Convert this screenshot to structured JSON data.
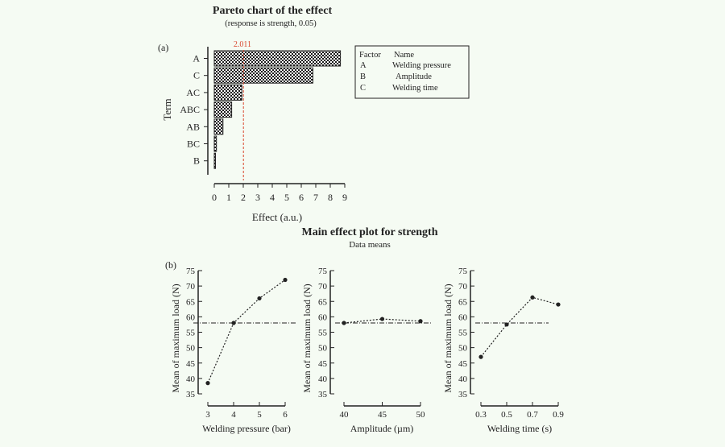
{
  "colors": {
    "background": "#f5fbf3",
    "ink": "#222222",
    "reference_line": "#d9452b",
    "hatch_dark": "#1a1a1a",
    "hatch_light": "#ffffff"
  },
  "pareto": {
    "title": "Pareto chart of the effect",
    "subtitle": "(response is strength,   0.05)",
    "panel_label": "(a)",
    "xlabel": "Effect (a.u.)",
    "ylabel": "Term",
    "reference_label": "2.011",
    "legend": {
      "header_factor": "Factor",
      "header_name": "Name",
      "rows": [
        {
          "factor": "A",
          "name": "Welding pressure"
        },
        {
          "factor": "B",
          "name": "Amplitude"
        },
        {
          "factor": "C",
          "name": "Welding time"
        }
      ]
    }
  },
  "main_effects": {
    "title": "Main effect plot for strength",
    "subtitle": "Data means",
    "panel_label": "(b)",
    "ylabel": "Mean of maximum load (N)",
    "xlabels": [
      "Welding pressure (bar)",
      "Amplitude  (µm)",
      "Welding time (s)"
    ]
  },
  "chart_data": [
    {
      "type": "bar",
      "orientation": "horizontal",
      "title": "Pareto chart of the effect",
      "subtitle": "(response is strength,   0.05)",
      "xlabel": "Effect (a.u.)",
      "ylabel": "Term",
      "categories": [
        "A",
        "C",
        "AC",
        "ABC",
        "AB",
        "BC",
        "B"
      ],
      "values": [
        8.7,
        6.8,
        1.9,
        1.2,
        0.6,
        0.15,
        0.05
      ],
      "xlim": [
        0,
        9
      ],
      "xticks": [
        0,
        1,
        2,
        3,
        4,
        5,
        6,
        7,
        8,
        9
      ],
      "reference_line": 2.011,
      "grid": false,
      "legend_position": "right"
    },
    {
      "type": "line",
      "title": "Main effect plot for strength",
      "subtitle": "Data means",
      "xlabel": "Welding pressure (bar)",
      "ylabel": "Mean of maximum load (N)",
      "x": [
        "3",
        "4",
        "5",
        "6"
      ],
      "values": [
        38.5,
        58,
        66,
        72
      ],
      "ylim": [
        35,
        75
      ],
      "yticks": [
        35,
        40,
        45,
        50,
        55,
        60,
        65,
        70,
        75
      ],
      "mean_line": 58
    },
    {
      "type": "line",
      "xlabel": "Amplitude  (µm)",
      "ylabel": "Mean of maximum load (N)",
      "x": [
        "40",
        "45",
        "50"
      ],
      "values": [
        58,
        59.3,
        58.6
      ],
      "ylim": [
        35,
        75
      ],
      "yticks": [
        35,
        40,
        45,
        50,
        55,
        60,
        65,
        70,
        75
      ],
      "mean_line": 58
    },
    {
      "type": "line",
      "xlabel": "Welding time (s)",
      "ylabel": "Mean of maximum load (N)",
      "x": [
        "0.3",
        "0.5",
        "0.7",
        "0.9"
      ],
      "values": [
        47,
        57.5,
        66.3,
        64
      ],
      "ylim": [
        35,
        75
      ],
      "yticks": [
        35,
        40,
        45,
        50,
        55,
        60,
        65,
        70,
        75
      ],
      "mean_line": 58
    }
  ]
}
